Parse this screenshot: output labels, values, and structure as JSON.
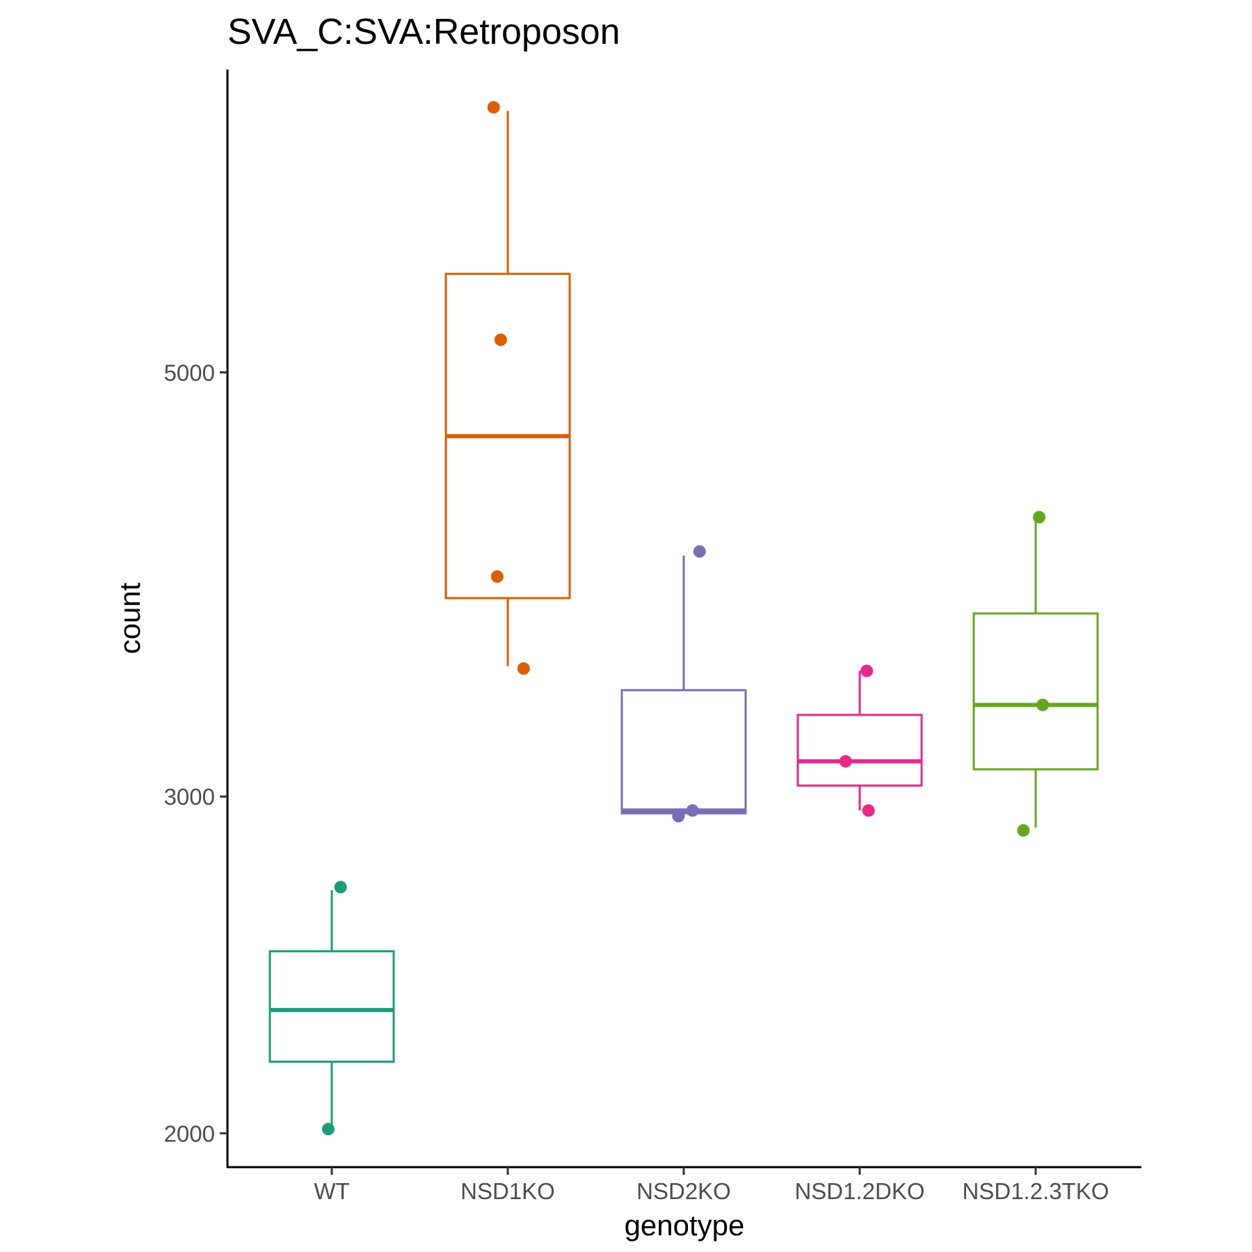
{
  "chart_data": {
    "type": "boxplot",
    "title": "SVA_C:SVA:Retroposon",
    "xlabel": "genotype",
    "ylabel": "count",
    "y_scale": "log",
    "ylim": [
      1920,
      7200
    ],
    "yticks": [
      {
        "value": 2000,
        "label": "2000"
      },
      {
        "value": 3000,
        "label": "3000"
      },
      {
        "value": 5000,
        "label": "5000"
      }
    ],
    "grid": false,
    "legend": "none",
    "categories": [
      "WT",
      "NSD1KO",
      "NSD2KO",
      "NSD1.2DKO",
      "NSD1.2.3TKO"
    ],
    "colors": [
      "#1b9e77",
      "#d95f02",
      "#7570b3",
      "#e7298a",
      "#66a61e"
    ],
    "boxes": [
      {
        "category": "WT",
        "whisker_low": 2010,
        "q1": 2180,
        "median": 2320,
        "q3": 2490,
        "whisker_high": 2680
      },
      {
        "category": "NSD1KO",
        "whisker_low": 3510,
        "q1": 3810,
        "median": 4630,
        "q3": 5630,
        "whisker_high": 6850
      },
      {
        "category": "NSD2KO",
        "whisker_low": 2940,
        "q1": 2940,
        "median": 2950,
        "q3": 3410,
        "whisker_high": 4010
      },
      {
        "category": "NSD1.2DKO",
        "whisker_low": 2950,
        "q1": 3040,
        "median": 3130,
        "q3": 3310,
        "whisker_high": 3490
      },
      {
        "category": "NSD1.2.3TKO",
        "whisker_low": 2890,
        "q1": 3100,
        "median": 3350,
        "q3": 3740,
        "whisker_high": 4180
      }
    ],
    "points": [
      {
        "category": "WT",
        "values": [
          2010,
          2690
        ],
        "jitter": [
          -0.02,
          0.05
        ]
      },
      {
        "category": "NSD1KO",
        "values": [
          3500,
          3910,
          5200,
          6880
        ],
        "jitter": [
          0.09,
          -0.06,
          -0.04,
          -0.08
        ]
      },
      {
        "category": "NSD2KO",
        "values": [
          2930,
          2950,
          4030
        ],
        "jitter": [
          -0.03,
          0.05,
          0.09
        ]
      },
      {
        "category": "NSD1.2DKO",
        "values": [
          2950,
          3130,
          3490
        ],
        "jitter": [
          0.05,
          -0.08,
          0.04
        ]
      },
      {
        "category": "NSD1.2.3TKO",
        "values": [
          2880,
          3350,
          4200
        ],
        "jitter": [
          -0.07,
          0.04,
          0.02
        ]
      }
    ]
  }
}
